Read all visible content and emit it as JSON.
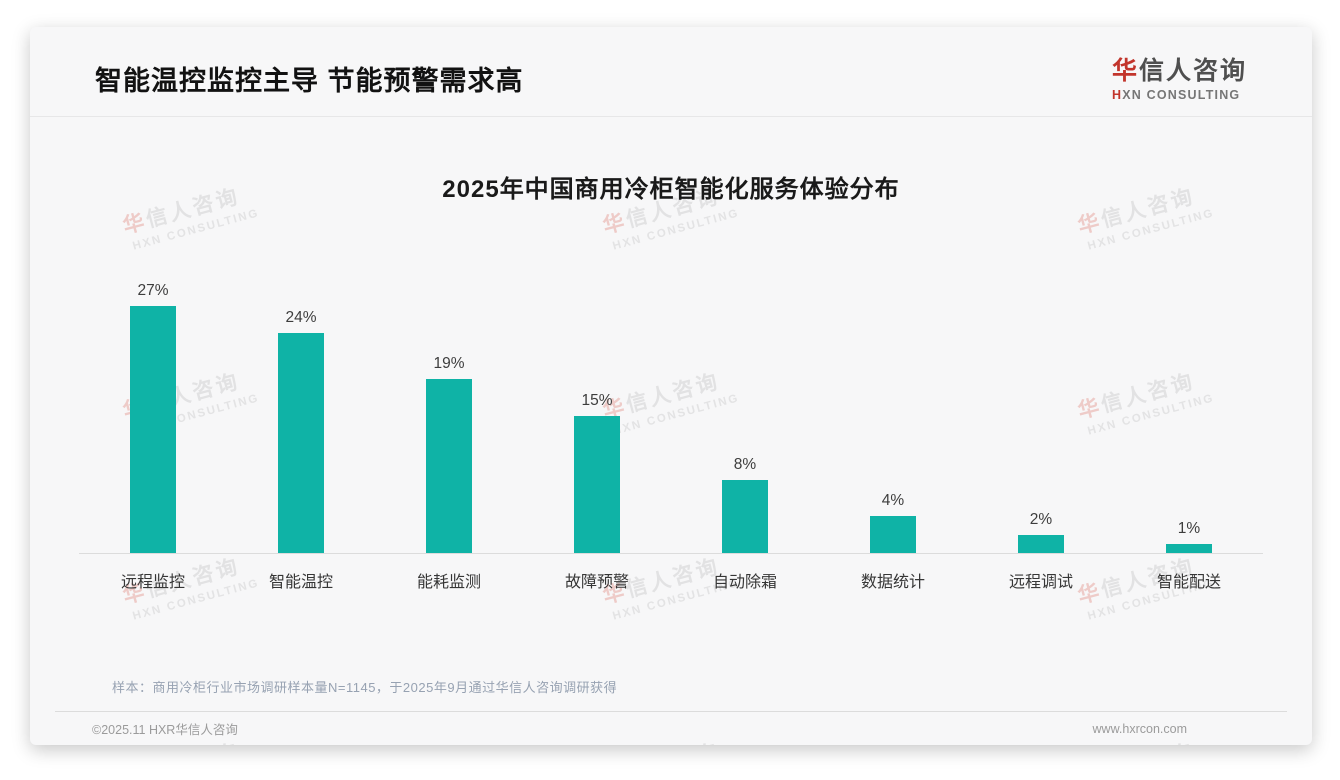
{
  "page": {
    "header": {
      "title": "智能温控监控主导 节能预警需求高",
      "logo": {
        "cn_accent": "华",
        "cn_rest": "信人咨询",
        "en_accent": "H",
        "en_rest": "XN CONSULTING"
      }
    },
    "footnote": "样本：商用冷柜行业市场调研样本量N=1145，于2025年9月通过华信人咨询调研获得",
    "footer": {
      "copyright": "©2025.11 HXR华信人咨询",
      "website": "www.hxrcon.com"
    },
    "watermark": {
      "cn_accent": "华",
      "cn_rest": "信人咨询",
      "en": "HXN CONSULTING"
    },
    "colors": {
      "accent_red": "#C2352C",
      "bar_teal": "#0FB3A6"
    }
  },
  "chart_data": {
    "type": "bar",
    "title": "2025年中国商用冷柜智能化服务体验分布",
    "categories": [
      "远程监控",
      "智能温控",
      "能耗监测",
      "故障预警",
      "自动除霜",
      "数据统计",
      "远程调试",
      "智能配送"
    ],
    "values": [
      27,
      24,
      19,
      15,
      8,
      4,
      2,
      1
    ],
    "value_labels": [
      "27%",
      "24%",
      "19%",
      "15%",
      "8%",
      "4%",
      "2%",
      "1%"
    ],
    "unit": "%",
    "bar_color": "#0FB3A6",
    "ylim": [
      0,
      30
    ],
    "grid": false,
    "legend": false,
    "xlabel": "",
    "ylabel": ""
  }
}
